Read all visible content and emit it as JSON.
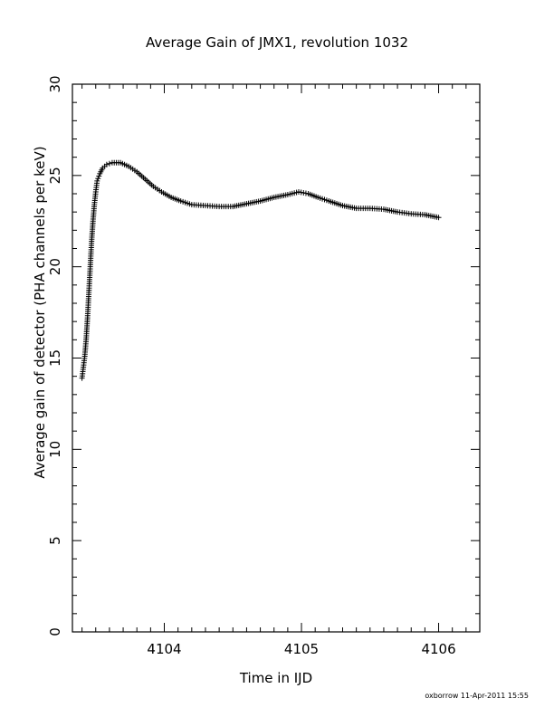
{
  "chart_data": {
    "type": "scatter",
    "title": "Average Gain of JMX1, revolution 1032",
    "xlabel": "Time in IJD",
    "ylabel": "Average gain of detector (PHA channels per keV)",
    "footer": "oxborrow 11-Apr-2011 15:55",
    "xlim": [
      4103.33,
      4106.3
    ],
    "ylim": [
      0,
      30
    ],
    "x_ticks": [
      4104,
      4105,
      4106
    ],
    "x_tick_labels": [
      "4104",
      "4105",
      "4106"
    ],
    "y_ticks": [
      0,
      5,
      10,
      15,
      20,
      25,
      30
    ],
    "y_tick_labels": [
      "0",
      "5",
      "10",
      "15",
      "20",
      "25",
      "30"
    ],
    "marker": "plus",
    "grid": false,
    "series": [
      {
        "points": [
          [
            4103.4,
            13.9
          ],
          [
            4103.41,
            14.5
          ],
          [
            4103.42,
            15.1
          ],
          [
            4103.43,
            16.0
          ],
          [
            4103.44,
            17.2
          ],
          [
            4103.45,
            18.6
          ],
          [
            4103.46,
            20.0
          ],
          [
            4103.47,
            21.4
          ],
          [
            4103.48,
            22.5
          ],
          [
            4103.49,
            23.4
          ],
          [
            4103.5,
            24.1
          ],
          [
            4103.51,
            24.7
          ],
          [
            4103.53,
            25.1
          ],
          [
            4103.55,
            25.4
          ],
          [
            4103.58,
            25.6
          ],
          [
            4103.62,
            25.7
          ],
          [
            4103.68,
            25.7
          ],
          [
            4103.74,
            25.5
          ],
          [
            4103.8,
            25.2
          ],
          [
            4103.86,
            24.8
          ],
          [
            4103.92,
            24.4
          ],
          [
            4103.98,
            24.1
          ],
          [
            4104.05,
            23.8
          ],
          [
            4104.12,
            23.6
          ],
          [
            4104.2,
            23.4
          ],
          [
            4104.3,
            23.35
          ],
          [
            4104.4,
            23.3
          ],
          [
            4104.5,
            23.3
          ],
          [
            4104.6,
            23.45
          ],
          [
            4104.7,
            23.6
          ],
          [
            4104.8,
            23.8
          ],
          [
            4104.9,
            23.95
          ],
          [
            4104.98,
            24.1
          ],
          [
            4105.05,
            24.0
          ],
          [
            4105.12,
            23.8
          ],
          [
            4105.2,
            23.6
          ],
          [
            4105.3,
            23.35
          ],
          [
            4105.4,
            23.2
          ],
          [
            4105.5,
            23.2
          ],
          [
            4105.6,
            23.15
          ],
          [
            4105.7,
            23.0
          ],
          [
            4105.8,
            22.9
          ],
          [
            4105.9,
            22.85
          ],
          [
            4106.0,
            22.7
          ]
        ]
      }
    ]
  }
}
